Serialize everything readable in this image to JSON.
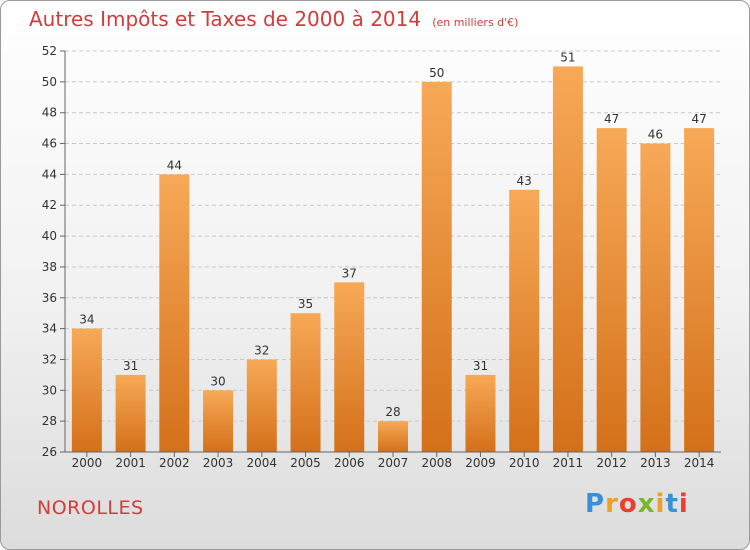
{
  "header": {
    "title": "Autres Impôts et Taxes de 2000 à 2014",
    "unit": "(en milliers d'€)"
  },
  "footer": {
    "commune": "NOROLLES",
    "logo": "Proxiti"
  },
  "colors": {
    "title": "#d23c3c",
    "bar_top": "#f7a957",
    "bar_bottom": "#d4701a"
  },
  "chart_data": {
    "type": "bar",
    "title": "Autres Impôts et Taxes de 2000 à 2014",
    "subtitle": "(en milliers d'€)",
    "xlabel": "",
    "ylabel": "",
    "categories": [
      "2000",
      "2001",
      "2002",
      "2003",
      "2004",
      "2005",
      "2006",
      "2007",
      "2008",
      "2009",
      "2010",
      "2011",
      "2012",
      "2013",
      "2014"
    ],
    "values": [
      34,
      31,
      44,
      30,
      32,
      35,
      37,
      28,
      50,
      31,
      43,
      51,
      47,
      46,
      47
    ],
    "ylim": [
      26,
      52
    ],
    "yticks": [
      26,
      28,
      30,
      32,
      34,
      36,
      38,
      40,
      42,
      44,
      46,
      48,
      50,
      52
    ],
    "grid": "horizontal dashed",
    "legend": "none"
  }
}
